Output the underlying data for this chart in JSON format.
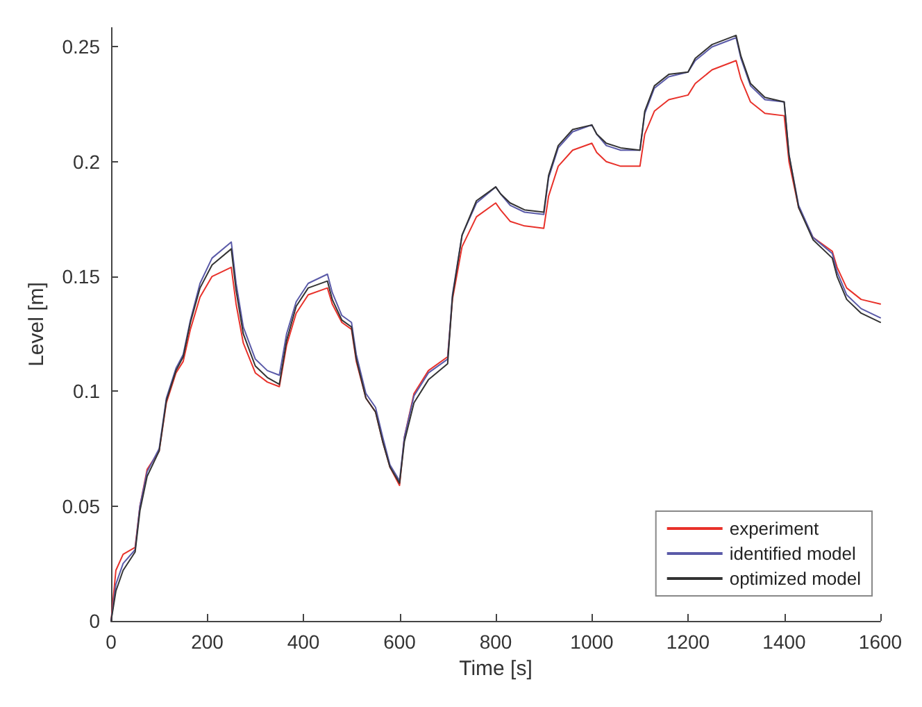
{
  "chart_data": {
    "type": "line",
    "xlabel": "Time [s]",
    "ylabel": "Level [m]",
    "x": [
      0,
      10,
      25,
      50,
      60,
      75,
      100,
      115,
      135,
      150,
      165,
      185,
      210,
      250,
      260,
      275,
      300,
      325,
      350,
      365,
      385,
      410,
      450,
      460,
      480,
      500,
      510,
      530,
      550,
      565,
      580,
      600,
      610,
      630,
      660,
      700,
      710,
      730,
      760,
      800,
      810,
      830,
      860,
      900,
      910,
      930,
      960,
      1000,
      1010,
      1030,
      1060,
      1100,
      1110,
      1130,
      1160,
      1200,
      1215,
      1250,
      1300,
      1310,
      1330,
      1360,
      1400,
      1410,
      1430,
      1460,
      1500,
      1510,
      1530,
      1560,
      1600
    ],
    "xlim": [
      0,
      1600
    ],
    "xticks": [
      0,
      200,
      400,
      600,
      800,
      1000,
      1200,
      1400,
      1600
    ],
    "ylim": [
      0,
      0.2583
    ],
    "yticks": [
      0,
      0.05,
      0.1,
      0.15,
      0.2,
      0.25
    ],
    "grid": false,
    "legend": "bottom right",
    "line_style": "solid",
    "marker": "none",
    "series": [
      {
        "name": "experiment",
        "color": "#e8312a",
        "values": [
          0,
          0.022,
          0.029,
          0.032,
          0.05,
          0.066,
          0.074,
          0.095,
          0.108,
          0.113,
          0.127,
          0.141,
          0.15,
          0.154,
          0.138,
          0.121,
          0.108,
          0.104,
          0.102,
          0.12,
          0.134,
          0.142,
          0.145,
          0.138,
          0.13,
          0.127,
          0.113,
          0.097,
          0.091,
          0.078,
          0.067,
          0.059,
          0.08,
          0.099,
          0.109,
          0.115,
          0.14,
          0.163,
          0.176,
          0.182,
          0.179,
          0.174,
          0.172,
          0.171,
          0.185,
          0.198,
          0.205,
          0.208,
          0.204,
          0.2,
          0.198,
          0.198,
          0.212,
          0.222,
          0.227,
          0.229,
          0.234,
          0.24,
          0.244,
          0.236,
          0.226,
          0.221,
          0.22,
          0.2,
          0.18,
          0.167,
          0.161,
          0.154,
          0.145,
          0.14,
          0.138
        ]
      },
      {
        "name": "identified model",
        "color": "#5a5aa8",
        "values": [
          0,
          0.016,
          0.025,
          0.031,
          0.05,
          0.065,
          0.075,
          0.097,
          0.11,
          0.116,
          0.131,
          0.147,
          0.158,
          0.165,
          0.147,
          0.128,
          0.114,
          0.109,
          0.107,
          0.125,
          0.139,
          0.147,
          0.151,
          0.143,
          0.133,
          0.13,
          0.116,
          0.099,
          0.093,
          0.08,
          0.068,
          0.061,
          0.08,
          0.098,
          0.108,
          0.114,
          0.142,
          0.168,
          0.182,
          0.189,
          0.186,
          0.181,
          0.178,
          0.177,
          0.193,
          0.206,
          0.213,
          0.216,
          0.212,
          0.207,
          0.205,
          0.205,
          0.221,
          0.232,
          0.237,
          0.239,
          0.244,
          0.25,
          0.254,
          0.245,
          0.233,
          0.227,
          0.226,
          0.203,
          0.181,
          0.167,
          0.16,
          0.152,
          0.142,
          0.136,
          0.132
        ]
      },
      {
        "name": "optimized model",
        "color": "#333333",
        "values": [
          0,
          0.013,
          0.022,
          0.03,
          0.048,
          0.063,
          0.074,
          0.096,
          0.109,
          0.115,
          0.13,
          0.145,
          0.155,
          0.162,
          0.144,
          0.125,
          0.111,
          0.106,
          0.103,
          0.122,
          0.137,
          0.145,
          0.148,
          0.14,
          0.131,
          0.128,
          0.114,
          0.097,
          0.091,
          0.078,
          0.067,
          0.06,
          0.078,
          0.095,
          0.105,
          0.112,
          0.141,
          0.168,
          0.183,
          0.189,
          0.186,
          0.182,
          0.179,
          0.178,
          0.194,
          0.207,
          0.214,
          0.216,
          0.212,
          0.208,
          0.206,
          0.205,
          0.222,
          0.233,
          0.238,
          0.239,
          0.245,
          0.251,
          0.255,
          0.246,
          0.234,
          0.228,
          0.226,
          0.203,
          0.18,
          0.166,
          0.158,
          0.15,
          0.14,
          0.134,
          0.13
        ]
      }
    ]
  }
}
